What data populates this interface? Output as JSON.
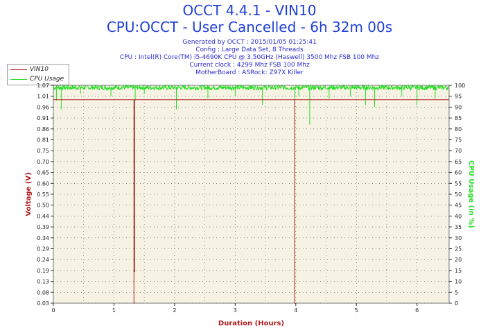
{
  "header": {
    "title": "OCCT 4.4.1 - VIN10",
    "subtitle": "CPU:OCCT - User Cancelled - 6h 32m 00s",
    "info_lines": [
      "Generated by OCCT : 2015/01/05 01:25:41",
      "Config : Large Data Set, 8 Threads",
      "CPU : Intel(R) Core(TM) i5-4690K CPU @ 3.50GHz (Haswell) 3500 Mhz FSB 100 Mhz",
      "Current clock : 4299 Mhz FSB 100 Mhz",
      "MotherBoard : ASRock: Z97X Killer"
    ]
  },
  "legend": {
    "items": [
      {
        "label": "VIN10",
        "color": "#b01c1c"
      },
      {
        "label": "CPU Usage",
        "color": "#22dd22"
      }
    ]
  },
  "colors": {
    "voltage": "#b01c1c",
    "cpu": "#22dd22",
    "plot_bg": "#f7f3e4",
    "title": "#1f3fd6",
    "axis_label_left": "#b01c1c",
    "axis_label_right": "#22dd22"
  },
  "chart_data": {
    "type": "line",
    "xlabel": "Duration (Hours)",
    "ylabel": "Voltage (V)",
    "y2label": "CPU Usage (in %)",
    "xlim": [
      0,
      6.53
    ],
    "ylim": [
      0.03,
      1.06
    ],
    "y2lim": [
      0,
      100
    ],
    "x_ticks": [
      0,
      1,
      2,
      3,
      4,
      5,
      6
    ],
    "y_ticks": [
      "0.03",
      "0.08",
      "0.13",
      "0.19",
      "0.24",
      "0.29",
      "0.34",
      "0.39",
      "0.44",
      "0.50",
      "0.55",
      "0.60",
      "0.65",
      "0.70",
      "0.75",
      "0.81",
      "0.86",
      "0.91",
      "0.96",
      "1.01",
      "1.07"
    ],
    "y2_ticks": [
      0,
      5,
      10,
      15,
      20,
      25,
      30,
      35,
      40,
      45,
      50,
      55,
      60,
      65,
      70,
      75,
      80,
      85,
      90,
      95,
      100
    ],
    "grid": true,
    "legend_position": "top-left",
    "series": [
      {
        "name": "VIN10",
        "baseline": 0.992,
        "dips": [
          {
            "x": 1.33,
            "y": 0.03
          },
          {
            "x": 1.34,
            "y": 0.18
          },
          {
            "x": 3.98,
            "y": 0.03
          }
        ]
      },
      {
        "name": "CPU Usage",
        "baseline": 99,
        "spikes": [
          {
            "x": 0.05,
            "y": 93
          },
          {
            "x": 0.13,
            "y": 89
          },
          {
            "x": 0.45,
            "y": 96
          },
          {
            "x": 0.95,
            "y": 95
          },
          {
            "x": 1.35,
            "y": 93
          },
          {
            "x": 1.5,
            "y": 96
          },
          {
            "x": 2.03,
            "y": 89
          },
          {
            "x": 2.55,
            "y": 94
          },
          {
            "x": 3.0,
            "y": 95
          },
          {
            "x": 3.45,
            "y": 91
          },
          {
            "x": 3.98,
            "y": 88
          },
          {
            "x": 4.05,
            "y": 95
          },
          {
            "x": 4.23,
            "y": 82
          },
          {
            "x": 4.55,
            "y": 94
          },
          {
            "x": 4.9,
            "y": 95
          },
          {
            "x": 5.15,
            "y": 91
          },
          {
            "x": 5.3,
            "y": 90
          },
          {
            "x": 5.75,
            "y": 95
          },
          {
            "x": 6.0,
            "y": 91
          },
          {
            "x": 6.3,
            "y": 94
          }
        ]
      }
    ]
  }
}
